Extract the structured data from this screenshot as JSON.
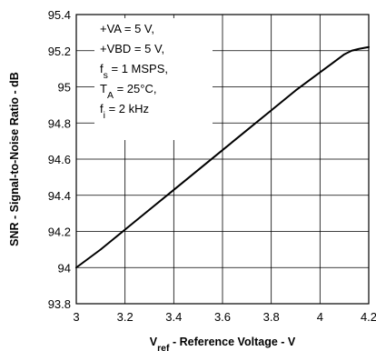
{
  "chart_data": {
    "type": "line",
    "title": "",
    "xlabel": {
      "main": "V",
      "sub": "ref",
      "rest": " - Reference Voltage - V"
    },
    "ylabel": "SNR - Signal-to-Noise Ratio - dB",
    "xlim": [
      3,
      4.2
    ],
    "ylim": [
      93.8,
      95.4
    ],
    "x_ticks": [
      3,
      3.2,
      3.4,
      3.6,
      3.8,
      4,
      4.2
    ],
    "x_tick_labels": [
      "3",
      "3.2",
      "3.4",
      "3.6",
      "3.8",
      "4",
      "4.2"
    ],
    "y_ticks": [
      93.8,
      94,
      94.2,
      94.4,
      94.6,
      94.8,
      95,
      95.2,
      95.4
    ],
    "y_tick_labels": [
      "93.8",
      "94",
      "94.2",
      "94.4",
      "94.6",
      "94.8",
      "95",
      "95.2",
      "95.4"
    ],
    "grid": true,
    "line_color": "#000000",
    "annotations": [
      {
        "main": "+VA = 5 V,"
      },
      {
        "main": "+VBD = 5 V,"
      },
      {
        "main": "f",
        "sub": "s",
        "rest": " = 1 MSPS,"
      },
      {
        "main": "T",
        "sub": "A",
        "rest": " = 25°C,"
      },
      {
        "main": "f",
        "sub": "i",
        "rest": " = 2 kHz"
      }
    ],
    "series": [
      {
        "x": [
          3.0,
          3.1,
          3.2,
          3.3,
          3.4,
          3.5,
          3.6,
          3.7,
          3.8,
          3.9,
          4.0,
          4.05,
          4.1,
          4.13,
          4.16,
          4.2
        ],
        "y": [
          94.0,
          94.1,
          94.21,
          94.32,
          94.43,
          94.54,
          94.65,
          94.76,
          94.87,
          94.98,
          95.08,
          95.13,
          95.18,
          95.2,
          95.21,
          95.22
        ]
      }
    ]
  }
}
